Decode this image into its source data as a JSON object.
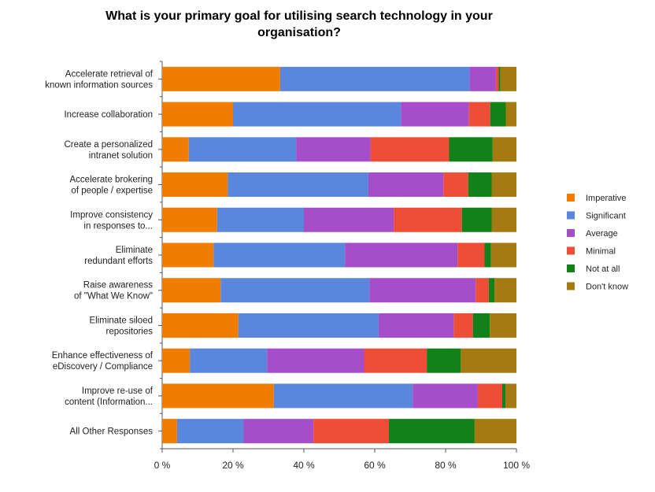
{
  "chart_data": {
    "type": "bar",
    "orientation": "horizontal",
    "stacked": true,
    "title_lines": [
      "What is your primary goal for utilising search technology in your",
      "organisation?"
    ],
    "categories": [
      [
        "Accelerate retrieval of",
        "known information sources"
      ],
      [
        "Increase collaboration"
      ],
      [
        "Create a personalized",
        "intranet solution"
      ],
      [
        "Accelerate brokering",
        "of people / expertise"
      ],
      [
        "Improve consistency",
        "in responses to..."
      ],
      [
        "Eliminate",
        "redundant efforts"
      ],
      [
        "Raise awareness",
        "of \"What We Know\""
      ],
      [
        "Eliminate siloed",
        "repositories"
      ],
      [
        "Enhance effectiveness of",
        "eDiscovery / Compliance"
      ],
      [
        "Improve re-use of",
        "content (Information..."
      ],
      [
        "All Other Responses"
      ]
    ],
    "xlim": [
      0,
      100
    ],
    "xticks": [
      "0 %",
      "20 %",
      "40 %",
      "60 %",
      "80 %",
      "100 %"
    ],
    "legend_position": "right",
    "series": [
      {
        "name": "Imperative",
        "color": "#f07d00",
        "values": [
          33.3,
          20,
          7.5,
          18.5,
          15.5,
          14.5,
          16.5,
          21.5,
          7.8,
          31.5,
          4.2
        ]
      },
      {
        "name": "Significant",
        "color": "#5a87dc",
        "values": [
          53.5,
          47.4,
          30.3,
          39.7,
          24.5,
          37.1,
          42,
          39.6,
          21.8,
          39.2,
          18.8
        ]
      },
      {
        "name": "Average",
        "color": "#a64dc9",
        "values": [
          7.4,
          19.2,
          21,
          21.2,
          25.4,
          31.8,
          30,
          21.2,
          27.4,
          18.4,
          19.7
        ]
      },
      {
        "name": "Minimal",
        "color": "#ee4e35",
        "values": [
          0.8,
          6,
          22.2,
          7,
          19.2,
          7.6,
          3.7,
          5.4,
          17.7,
          6.9,
          21.3
        ]
      },
      {
        "name": "Not at all",
        "color": "#13811a",
        "values": [
          0.5,
          4.4,
          12.3,
          6.6,
          8.4,
          1.8,
          1.6,
          4.8,
          9.6,
          0.9,
          24.2
        ]
      },
      {
        "name": "Don't know",
        "color": "#a57a10",
        "values": [
          4.5,
          3,
          6.7,
          7,
          7,
          7.2,
          6.2,
          7.5,
          15.7,
          3.1,
          11.8
        ]
      }
    ]
  }
}
